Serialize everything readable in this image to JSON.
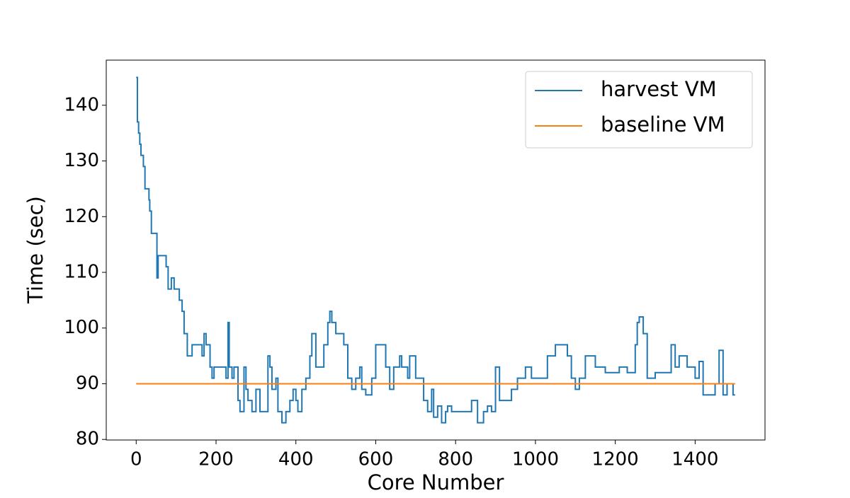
{
  "chart_data": {
    "type": "line",
    "drawstyle": "steps-post",
    "xlabel": "Core Number",
    "ylabel": "Time (sec)",
    "xlim": [
      -75,
      1575
    ],
    "ylim": [
      79.9,
      148.1
    ],
    "xticks": [
      0,
      200,
      400,
      600,
      800,
      1000,
      1200,
      1400
    ],
    "yticks": [
      80,
      90,
      100,
      110,
      120,
      130,
      140
    ],
    "legend": "upper right",
    "series": [
      {
        "name": "harvest VM",
        "color": "#1f77b4",
        "x": [
          0,
          3,
          6,
          9,
          12,
          18,
          22,
          32,
          34,
          38,
          52,
          55,
          75,
          80,
          88,
          95,
          108,
          115,
          120,
          128,
          140,
          165,
          170,
          175,
          185,
          190,
          195,
          225,
          230,
          233,
          240,
          245,
          255,
          260,
          270,
          275,
          280,
          290,
          300,
          310,
          330,
          335,
          340,
          350,
          355,
          365,
          375,
          385,
          393,
          400,
          405,
          415,
          425,
          435,
          440,
          450,
          470,
          480,
          485,
          490,
          500,
          520,
          530,
          540,
          550,
          560,
          565,
          575,
          590,
          600,
          625,
          635,
          645,
          660,
          665,
          680,
          685,
          700,
          720,
          730,
          740,
          745,
          755,
          765,
          775,
          780,
          790,
          800,
          840,
          855,
          870,
          880,
          890,
          900,
          910,
          940,
          955,
          975,
          990,
          1030,
          1050,
          1080,
          1090,
          1100,
          1110,
          1125,
          1150,
          1175,
          1210,
          1230,
          1250,
          1255,
          1260,
          1270,
          1280,
          1300,
          1340,
          1350,
          1360,
          1380,
          1400,
          1410,
          1420,
          1450,
          1460,
          1470,
          1480,
          1495,
          1500
        ],
        "values": [
          145,
          137,
          135,
          133,
          131,
          129,
          125,
          123,
          121,
          117,
          109,
          113,
          111,
          107,
          109,
          107,
          105,
          103,
          99,
          95,
          97,
          95,
          99,
          97,
          93,
          91,
          93,
          91,
          101,
          93,
          91,
          93,
          87,
          85,
          93,
          89,
          87,
          85,
          89,
          85,
          95,
          93,
          89,
          91,
          85,
          83,
          85,
          87,
          89,
          87,
          85,
          89,
          91,
          95,
          99,
          93,
          97,
          101,
          103,
          101,
          99,
          97,
          91,
          89,
          91,
          93,
          89,
          88,
          91,
          97,
          93,
          89,
          93,
          95,
          93,
          91,
          95,
          91,
          87,
          85,
          89,
          84,
          86,
          83,
          85,
          86,
          85,
          85,
          87,
          83,
          85,
          86,
          85,
          93,
          87,
          89,
          91,
          93,
          91,
          95,
          97,
          95,
          91,
          89,
          91,
          95,
          93,
          92,
          93,
          92,
          97,
          101,
          102,
          99,
          91,
          92,
          97,
          93,
          95,
          93,
          91,
          94,
          88,
          90,
          96,
          88,
          90,
          88,
          88
        ]
      },
      {
        "name": "baseline VM",
        "color": "#ff7f0e",
        "x": [
          0,
          1500
        ],
        "values": [
          90,
          90
        ]
      }
    ]
  }
}
